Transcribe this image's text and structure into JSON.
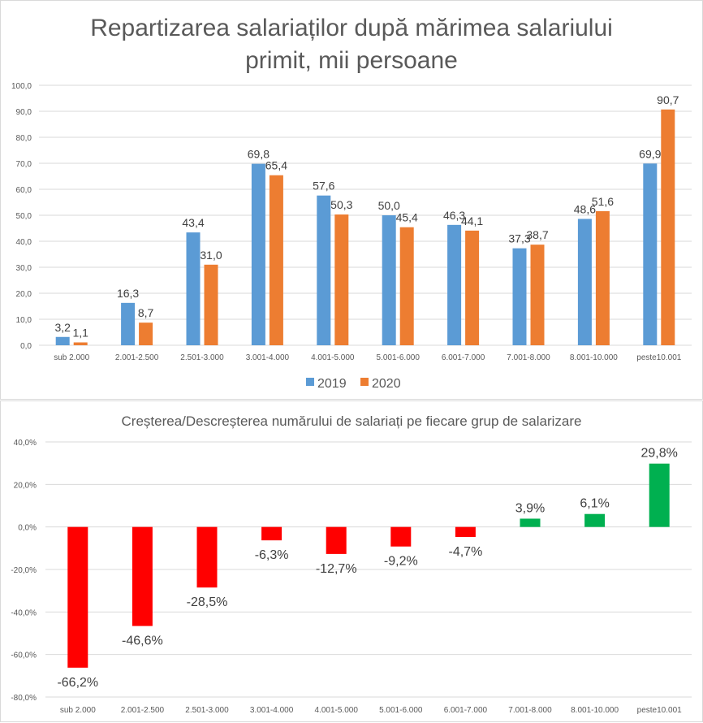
{
  "chart_data": [
    {
      "type": "bar",
      "title_lines": [
        "Repartizarea salariaților după mărimea salariului",
        "primit, mii persoane"
      ],
      "categories": [
        "sub 2.000",
        "2.001-2.500",
        "2.501-3.000",
        "3.001-4.000",
        "4.001-5.000",
        "5.001-6.000",
        "6.001-7.000",
        "7.001-8.000",
        "8.001-10.000",
        "peste10.001"
      ],
      "series": [
        {
          "name": "2019",
          "color": "#5B9BD5",
          "values": [
            3.2,
            16.3,
            43.4,
            69.8,
            57.6,
            50.0,
            46.3,
            37.3,
            48.6,
            69.9
          ],
          "labels": [
            "3,2",
            "16,3",
            "43,4",
            "69,8",
            "57,6",
            "50,0",
            "46,3",
            "37,3",
            "48,6",
            "69,9"
          ]
        },
        {
          "name": "2020",
          "color": "#ED7D31",
          "values": [
            1.1,
            8.7,
            31.0,
            65.4,
            50.3,
            45.4,
            44.1,
            38.7,
            51.6,
            90.7
          ],
          "labels": [
            "1,1",
            "8,7",
            "31,0",
            "65,4",
            "50,3",
            "45,4",
            "44,1",
            "38,7",
            "51,6",
            "90,7"
          ]
        }
      ],
      "ylim": [
        0,
        100
      ],
      "yticks": [
        0,
        10,
        20,
        30,
        40,
        50,
        60,
        70,
        80,
        90,
        100
      ],
      "ytick_labels": [
        "0,0",
        "10,0",
        "20,0",
        "30,0",
        "40,0",
        "50,0",
        "60,0",
        "70,0",
        "80,0",
        "90,0",
        "100,0"
      ],
      "grid": true,
      "legend": "bottom",
      "xlabel": "",
      "ylabel": ""
    },
    {
      "type": "bar",
      "title": "Creșterea/Descreșterea numărului de salariați pe fiecare grup de salarizare",
      "categories": [
        "sub 2.000",
        "2.001-2.500",
        "2.501-3.000",
        "3.001-4.000",
        "4.001-5.000",
        "5.001-6.000",
        "6.001-7.000",
        "7.001-8.000",
        "8.001-10.000",
        "peste10.001"
      ],
      "values": [
        -66.2,
        -46.6,
        -28.5,
        -6.3,
        -12.7,
        -9.2,
        -4.7,
        3.9,
        6.1,
        29.8
      ],
      "labels": [
        "-66,2%",
        "-46,6%",
        "-28,5%",
        "-6,3%",
        "-12,7%",
        "-9,2%",
        "-4,7%",
        "3,9%",
        "6,1%",
        "29,8%"
      ],
      "positive_color": "#00B050",
      "negative_color": "#FF0000",
      "ylim": [
        -80,
        40
      ],
      "yticks": [
        -80,
        -60,
        -40,
        -20,
        0,
        20,
        40
      ],
      "ytick_labels": [
        "-80,0%",
        "-60,0%",
        "-40,0%",
        "-20,0%",
        "0,0%",
        "20,0%",
        "40,0%"
      ],
      "grid": true,
      "xlabel": "",
      "ylabel": ""
    }
  ]
}
